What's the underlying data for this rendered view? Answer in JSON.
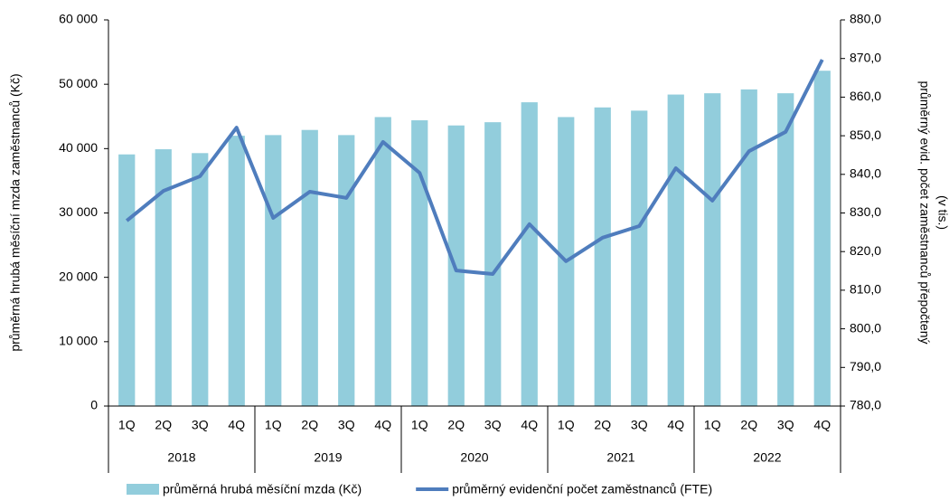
{
  "chart_data": {
    "type": "bar_line",
    "categories": [
      "1Q",
      "2Q",
      "3Q",
      "4Q",
      "1Q",
      "2Q",
      "3Q",
      "4Q",
      "1Q",
      "2Q",
      "3Q",
      "4Q",
      "1Q",
      "2Q",
      "3Q",
      "4Q",
      "1Q",
      "2Q",
      "3Q",
      "4Q"
    ],
    "category_groups": [
      "2018",
      "2019",
      "2020",
      "2021",
      "2022"
    ],
    "ylabel": "průměrná hrubá měsíční mzda zaměstnanců (Kč)",
    "y2label": [
      "průměrný evid. počet zaměstnanců přepočtený",
      "(v tis.)"
    ],
    "ylim": [
      0,
      60000
    ],
    "yticks": [
      0,
      {
        "value": 10000,
        "label": "10 000"
      },
      {
        "value": 20000,
        "label": "20 000"
      },
      {
        "value": 30000,
        "label": "30 000"
      },
      {
        "value": 40000,
        "label": "40 000"
      },
      {
        "value": 50000,
        "label": "50 000"
      },
      {
        "value": 60000,
        "label": "60 000"
      }
    ],
    "y2lim": [
      780,
      880
    ],
    "y2ticks": [
      {
        "value": 780,
        "label": "780,0"
      },
      {
        "value": 790,
        "label": "790,0"
      },
      {
        "value": 800,
        "label": "800,0"
      },
      {
        "value": 810,
        "label": "810,0"
      },
      {
        "value": 820,
        "label": "820,0"
      },
      {
        "value": 830,
        "label": "830,0"
      },
      {
        "value": 840,
        "label": "840,0"
      },
      {
        "value": 850,
        "label": "850,0"
      },
      {
        "value": 860,
        "label": "860,0"
      },
      {
        "value": 870,
        "label": "870,0"
      },
      {
        "value": 880,
        "label": "880,0"
      }
    ],
    "series": [
      {
        "name": "průměrná hrubá měsíční mzda (Kč)",
        "kind": "bar",
        "color": "#92cddc",
        "values": [
          39100,
          39900,
          39300,
          42000,
          42100,
          42900,
          42100,
          44900,
          44400,
          43600,
          44100,
          47200,
          44900,
          46400,
          45900,
          48400,
          48600,
          49200,
          48600,
          52100
        ]
      },
      {
        "name": "průměrný evidenční počet zaměstnanců (FTE)",
        "kind": "line",
        "axis": "y2",
        "color": "#4f7dbd",
        "values": [
          828.0,
          835.7,
          839.5,
          852.1,
          828.7,
          835.5,
          833.9,
          848.4,
          840.4,
          815.1,
          814.2,
          827.1,
          817.5,
          823.6,
          826.6,
          841.6,
          833.2,
          846.0,
          851.0,
          869.7
        ]
      }
    ]
  }
}
